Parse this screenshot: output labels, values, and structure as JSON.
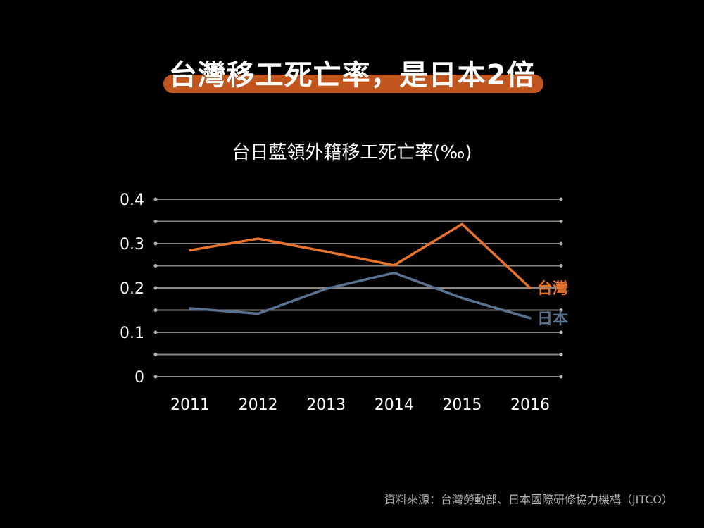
{
  "headline": "台灣移工死亡率，是日本2倍",
  "chart_data": {
    "type": "line",
    "title": "台日藍領外籍移工死亡率(‰)",
    "categories": [
      "2011",
      "2012",
      "2013",
      "2014",
      "2015",
      "2016"
    ],
    "yticks": [
      "0",
      "0.1",
      "0.2",
      "0.3",
      "0.4"
    ],
    "ylim": [
      0,
      0.4
    ],
    "grid": true,
    "series": [
      {
        "name": "台灣",
        "color": "#e8732c",
        "values": [
          0.285,
          0.311,
          0.282,
          0.251,
          0.344,
          0.2
        ]
      },
      {
        "name": "日本",
        "color": "#5b7393",
        "values": [
          0.154,
          0.142,
          0.198,
          0.234,
          0.177,
          0.132
        ]
      }
    ]
  },
  "source": "資料來源：台灣勞動部、日本國際研修協力機構（JITCO）"
}
